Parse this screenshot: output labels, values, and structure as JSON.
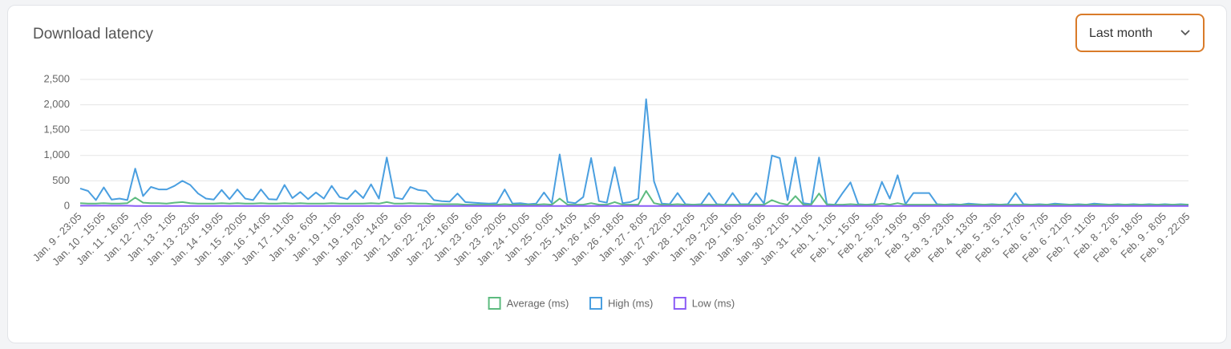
{
  "chart_data": {
    "type": "line",
    "title": "Download latency",
    "categories": [
      "Jan. 9 - 23:05",
      null,
      null,
      "Jan. 10 - 15:05",
      null,
      null,
      "Jan. 11 - 16:05",
      null,
      null,
      "Jan. 12 - 7:05",
      null,
      null,
      "Jan. 13 - 1:05",
      null,
      null,
      "Jan. 13 - 23:05",
      null,
      null,
      "Jan. 14 - 19:05",
      null,
      null,
      "Jan. 15 - 20:05",
      null,
      null,
      "Jan. 16 - 14:05",
      null,
      null,
      "Jan. 17 - 11:05",
      null,
      null,
      "Jan. 18 - 6:05",
      null,
      null,
      "Jan. 19 - 1:05",
      null,
      null,
      "Jan. 19 - 19:05",
      null,
      null,
      "Jan. 20 - 14:05",
      null,
      null,
      "Jan. 21 - 6:05",
      null,
      null,
      "Jan. 22 - 2:05",
      null,
      null,
      "Jan. 22 - 16:05",
      null,
      null,
      "Jan. 23 - 6:05",
      null,
      null,
      "Jan. 23 - 20:05",
      null,
      null,
      "Jan. 24 - 10:05",
      null,
      null,
      "Jan. 25 - 0:05",
      null,
      null,
      "Jan. 25 - 14:05",
      null,
      null,
      "Jan. 26 - 4:05",
      null,
      null,
      "Jan. 26 - 18:05",
      null,
      null,
      "Jan. 27 - 8:05",
      null,
      null,
      "Jan. 27 - 22:05",
      null,
      null,
      "Jan. 28 - 12:05",
      null,
      null,
      "Jan. 29 - 2:05",
      null,
      null,
      "Jan. 29 - 16:05",
      null,
      null,
      "Jan. 30 - 6:05",
      null,
      null,
      "Jan. 30 - 21:05",
      null,
      null,
      "Jan. 31 - 11:05",
      null,
      null,
      "Feb. 1 - 1:05",
      null,
      null,
      "Feb. 1 - 15:05",
      null,
      null,
      "Feb. 2 - 5:05",
      null,
      null,
      "Feb. 2 - 19:05",
      null,
      null,
      "Feb. 3 - 9:05",
      null,
      null,
      "Feb. 3 - 23:05",
      null,
      null,
      "Feb. 4 - 13:05",
      null,
      null,
      "Feb. 5 - 3:05",
      null,
      null,
      "Feb. 5 - 17:05",
      null,
      null,
      "Feb. 6 - 7:05",
      null,
      null,
      "Feb. 6 - 21:05",
      null,
      null,
      "Feb. 7 - 11:05",
      null,
      null,
      "Feb. 8 - 2:05",
      null,
      null,
      "Feb. 8 - 18:05",
      null,
      null,
      "Feb. 9 - 8:05",
      null,
      null,
      "Feb. 9 - 22:05"
    ],
    "series": [
      {
        "name": "Average (ms)",
        "color": "#5dbb7f",
        "values": [
          60,
          50,
          50,
          60,
          50,
          50,
          60,
          170,
          70,
          60,
          60,
          50,
          70,
          80,
          60,
          50,
          50,
          50,
          60,
          50,
          60,
          50,
          50,
          60,
          50,
          50,
          60,
          50,
          60,
          50,
          50,
          50,
          60,
          50,
          50,
          50,
          50,
          60,
          50,
          80,
          50,
          50,
          60,
          50,
          50,
          40,
          40,
          40,
          40,
          30,
          30,
          30,
          30,
          30,
          40,
          30,
          30,
          30,
          30,
          40,
          30,
          150,
          30,
          30,
          30,
          60,
          30,
          30,
          80,
          30,
          30,
          30,
          300,
          60,
          30,
          30,
          40,
          30,
          30,
          30,
          30,
          30,
          30,
          30,
          30,
          30,
          30,
          30,
          120,
          60,
          30,
          200,
          30,
          30,
          250,
          30,
          30,
          30,
          40,
          30,
          30,
          30,
          50,
          30,
          60,
          30,
          30,
          30,
          30,
          30,
          30,
          30,
          30,
          30,
          30,
          30,
          30,
          30,
          30,
          30,
          30,
          30,
          30,
          30,
          30,
          30,
          30,
          30,
          30,
          30,
          30,
          30,
          30,
          30,
          30,
          30,
          30,
          30,
          30,
          30,
          30,
          30
        ]
      },
      {
        "name": "High (ms)",
        "color": "#4a9fe0",
        "values": [
          350,
          300,
          120,
          370,
          130,
          150,
          120,
          740,
          200,
          380,
          330,
          330,
          400,
          500,
          420,
          250,
          150,
          130,
          320,
          140,
          330,
          150,
          120,
          330,
          140,
          130,
          420,
          160,
          280,
          140,
          270,
          150,
          400,
          180,
          140,
          310,
          160,
          430,
          150,
          960,
          170,
          140,
          380,
          320,
          300,
          120,
          100,
          90,
          250,
          80,
          70,
          60,
          50,
          60,
          330,
          50,
          60,
          40,
          50,
          270,
          60,
          1020,
          80,
          60,
          180,
          950,
          100,
          70,
          770,
          60,
          80,
          150,
          2110,
          490,
          50,
          40,
          260,
          40,
          30,
          40,
          260,
          40,
          30,
          260,
          40,
          40,
          260,
          50,
          1000,
          950,
          120,
          960,
          60,
          40,
          960,
          40,
          30,
          260,
          470,
          40,
          30,
          40,
          480,
          150,
          610,
          40,
          260,
          260,
          260,
          40,
          30,
          40,
          30,
          50,
          40,
          30,
          40,
          30,
          40,
          260,
          40,
          30,
          40,
          30,
          50,
          40,
          30,
          40,
          30,
          50,
          40,
          30,
          40,
          30,
          40,
          30,
          40,
          30,
          40,
          30,
          40,
          30
        ]
      },
      {
        "name": "Low (ms)",
        "color": "#8b5cf6",
        "values": [
          10,
          10,
          10,
          10,
          10,
          10,
          10,
          5,
          5,
          5,
          5,
          5,
          5,
          5,
          5,
          5,
          5,
          5,
          5,
          5,
          5,
          5,
          5,
          5,
          5,
          5,
          5,
          5,
          5,
          5,
          5,
          5,
          5,
          5,
          5,
          5,
          5,
          5,
          5,
          5,
          5,
          5,
          5,
          5,
          5,
          5,
          5,
          5,
          5,
          5,
          5,
          5,
          5,
          5,
          5,
          5,
          5,
          5,
          5,
          5,
          5,
          5,
          5,
          5,
          5,
          5,
          5,
          5,
          5,
          5,
          5,
          5,
          5,
          5,
          5,
          5,
          5,
          5,
          5,
          5,
          5,
          5,
          5,
          5,
          5,
          5,
          5,
          5,
          5,
          5,
          5,
          5,
          5,
          5,
          5,
          5,
          5,
          5,
          5,
          5,
          5,
          5,
          5,
          5,
          5,
          5,
          5,
          5,
          5,
          5,
          5,
          5,
          5,
          5,
          5,
          5,
          5,
          5,
          5,
          5,
          5,
          5,
          5,
          5,
          5,
          5,
          5,
          5,
          5,
          5,
          5,
          5,
          5,
          5,
          5,
          5,
          5,
          5,
          5,
          5,
          5,
          5
        ]
      }
    ],
    "ylim": [
      0,
      2500
    ],
    "yticks": [
      0,
      500,
      {
        "value": 1000,
        "label": "1,000"
      },
      {
        "value": 1500,
        "label": "1,500"
      },
      {
        "value": 2000,
        "label": "2,000"
      },
      {
        "value": 2500,
        "label": "2,500"
      }
    ],
    "grid": true
  },
  "dropdown": {
    "label": "Last month"
  }
}
